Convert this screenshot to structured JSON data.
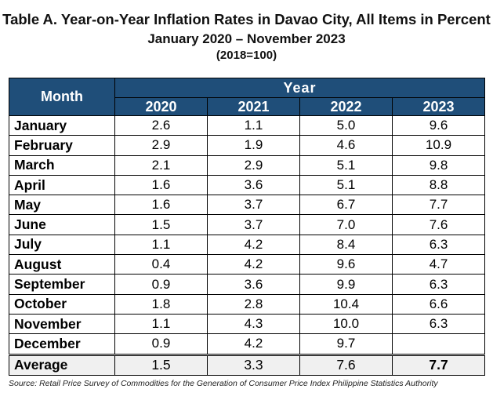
{
  "title": {
    "line1": "Table A. Year-on-Year Inflation Rates in Davao City, All Items in Percent",
    "line2": "January 2020 – November 2023",
    "line3": "(2018=100)"
  },
  "table": {
    "month_header": "Month",
    "year_header": "Year",
    "years": [
      "2020",
      "2021",
      "2022",
      "2023"
    ],
    "rows": [
      {
        "month": "January",
        "values": [
          "2.6",
          "1.1",
          "5.0",
          "9.6"
        ]
      },
      {
        "month": "February",
        "values": [
          "2.9",
          "1.9",
          "4.6",
          "10.9"
        ]
      },
      {
        "month": "March",
        "values": [
          "2.1",
          "2.9",
          "5.1",
          "9.8"
        ]
      },
      {
        "month": "April",
        "values": [
          "1.6",
          "3.6",
          "5.1",
          "8.8"
        ]
      },
      {
        "month": "May",
        "values": [
          "1.6",
          "3.7",
          "6.7",
          "7.7"
        ]
      },
      {
        "month": "June",
        "values": [
          "1.5",
          "3.7",
          "7.0",
          "7.6"
        ]
      },
      {
        "month": "July",
        "values": [
          "1.1",
          "4.2",
          "8.4",
          "6.3"
        ]
      },
      {
        "month": "August",
        "values": [
          "0.4",
          "4.2",
          "9.6",
          "4.7"
        ]
      },
      {
        "month": "September",
        "values": [
          "0.9",
          "3.6",
          "9.9",
          "6.3"
        ]
      },
      {
        "month": "October",
        "values": [
          "1.8",
          "2.8",
          "10.4",
          "6.6"
        ]
      },
      {
        "month": "November",
        "values": [
          "1.1",
          "4.3",
          "10.0",
          "6.3"
        ]
      },
      {
        "month": "December",
        "values": [
          "0.9",
          "4.2",
          "9.7",
          ""
        ]
      }
    ],
    "average": {
      "label": "Average",
      "values": [
        "1.5",
        "3.3",
        "7.6",
        "7.7"
      ]
    }
  },
  "source": "Source: Retail Price Survey of Commodities for the Generation of Consumer Price Index Philippine Statistics Authority"
}
